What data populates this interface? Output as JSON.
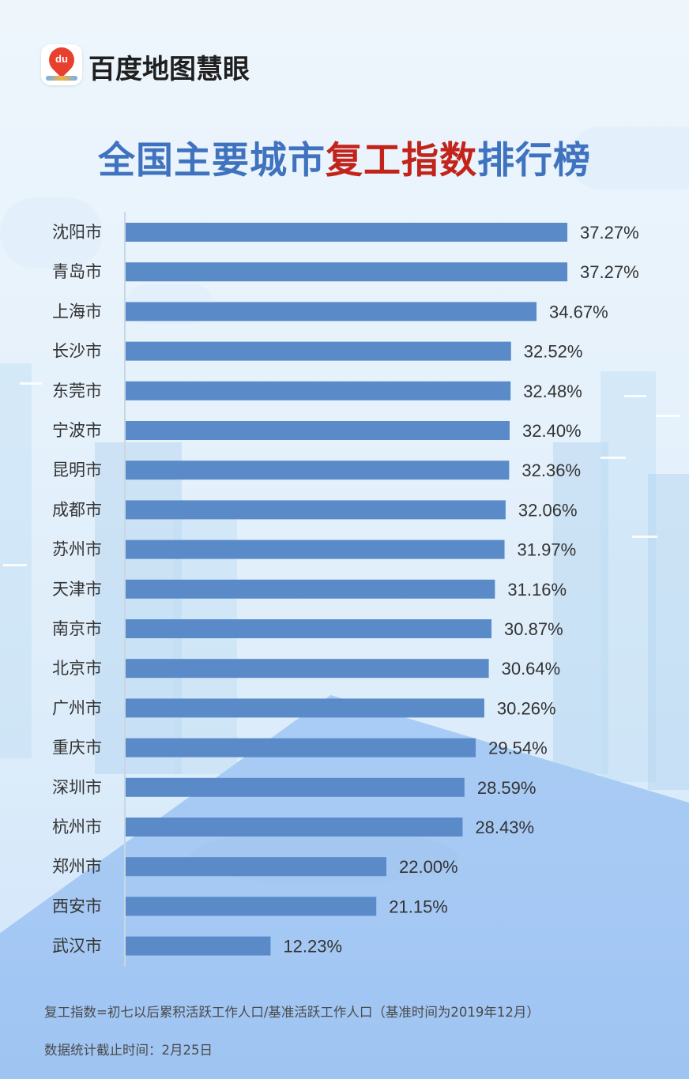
{
  "header": {
    "brand_name": "百度地图慧眼",
    "logo_text": "du",
    "title_part1": "全国主要城市",
    "title_part2": "复工指数",
    "title_part3": "排行榜"
  },
  "colors": {
    "bar": "#5a8bc8",
    "title_blue": "#3f72bf",
    "title_red": "#c2241c",
    "axis": "#c9d6e3"
  },
  "chart_data": {
    "type": "bar",
    "orientation": "horizontal",
    "categories": [
      "沈阳市",
      "青岛市",
      "上海市",
      "长沙市",
      "东莞市",
      "宁波市",
      "昆明市",
      "成都市",
      "苏州市",
      "天津市",
      "南京市",
      "北京市",
      "广州市",
      "重庆市",
      "深圳市",
      "杭州市",
      "郑州市",
      "西安市",
      "武汉市"
    ],
    "values": [
      37.27,
      37.27,
      34.67,
      32.52,
      32.48,
      32.4,
      32.36,
      32.06,
      31.97,
      31.16,
      30.87,
      30.64,
      30.26,
      29.54,
      28.59,
      28.43,
      22.0,
      21.15,
      12.23
    ],
    "value_labels": [
      "37.27%",
      "37.27%",
      "34.67%",
      "32.52%",
      "32.48%",
      "32.40%",
      "32.36%",
      "32.06%",
      "31.97%",
      "31.16%",
      "30.87%",
      "30.64%",
      "30.26%",
      "29.54%",
      "28.59%",
      "28.43%",
      "22.00%",
      "21.15%",
      "12.23%"
    ],
    "unit": "%",
    "grid": false,
    "legend": "none"
  },
  "footer": {
    "formula": "复工指数=初七以后累积活跃工作人口/基准活跃工作人口（基准时间为2019年12月）",
    "cutoff": "数据统计截止时间：2月25日"
  }
}
